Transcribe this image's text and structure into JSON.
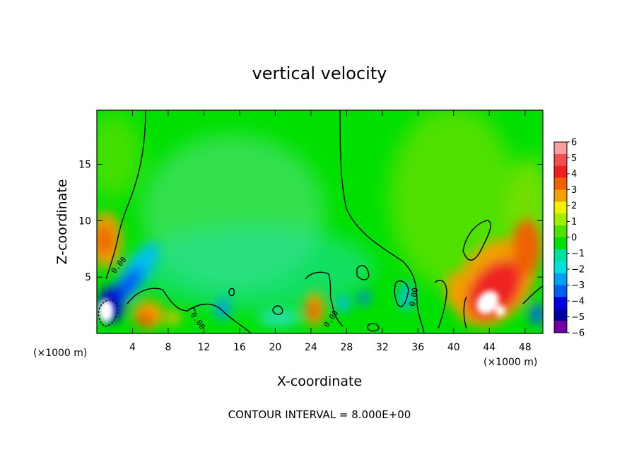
{
  "chart_data": {
    "type": "heatmap",
    "title": "vertical velocity",
    "xlabel": "X-coordinate",
    "ylabel": "Z-coordinate",
    "x_unit_label": "(×1000 m)",
    "x_unit_label_right": "(×1000 m)",
    "x_ticks": [
      "4",
      "8",
      "12",
      "16",
      "20",
      "24",
      "28",
      "32",
      "36",
      "40",
      "44",
      "48"
    ],
    "x_tick_values": [
      4,
      8,
      12,
      16,
      20,
      24,
      28,
      32,
      36,
      40,
      44,
      48
    ],
    "y_ticks": [
      "5",
      "10",
      "15"
    ],
    "y_tick_values": [
      5,
      10,
      15
    ],
    "xlim": [
      0,
      50
    ],
    "ylim": [
      0,
      19.8
    ],
    "colorbar": {
      "ticks": [
        "6",
        "5",
        "4",
        "3",
        "2",
        "1",
        "0",
        "−1",
        "−2",
        "−3",
        "−4",
        "−5",
        "−6"
      ],
      "values": [
        6,
        5,
        4,
        3,
        2,
        1,
        0,
        -1,
        -2,
        -3,
        -4,
        -5,
        -6
      ],
      "colors": [
        "#f8a0a0",
        "#f05050",
        "#f02020",
        "#f06000",
        "#f0a000",
        "#f0f000",
        "#a0f000",
        "#50e000",
        "#00e000",
        "#00e0a0",
        "#00e0e0",
        "#00a0f0",
        "#0060f0",
        "#0000e0",
        "#0000a0",
        "#7000a0"
      ]
    },
    "contour_labels": [
      "0.00",
      "0.00",
      "0.00",
      "0.00"
    ],
    "footer": "CONTOUR INTERVAL = 8.000E+00",
    "grid": false
  }
}
